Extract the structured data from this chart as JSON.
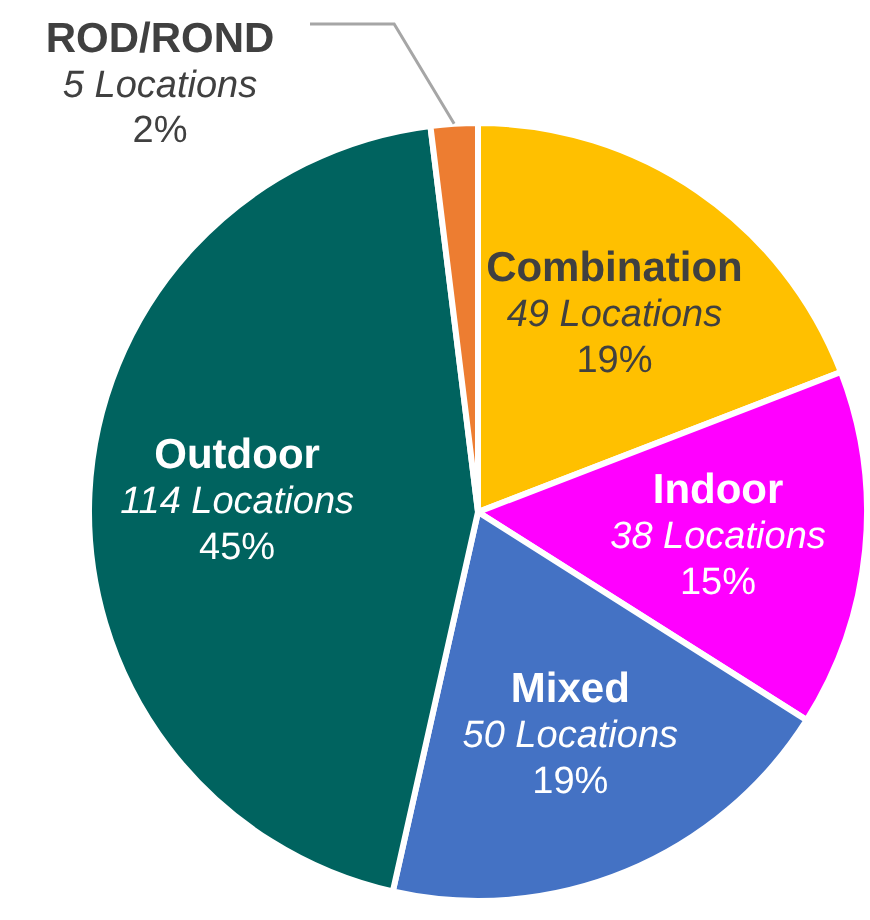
{
  "chart_data": {
    "type": "pie",
    "categories": [
      "Combination",
      "Indoor",
      "Mixed",
      "Outdoor",
      "ROD/ROND"
    ],
    "values": [
      49,
      38,
      50,
      114,
      5
    ],
    "colors": [
      "#ffc000",
      "#ff00ff",
      "#4472c4",
      "#00635f",
      "#ed7d31"
    ],
    "value_labels": [
      "49 Locations\n19%",
      "38 Locations\n15%",
      "50 Locations\n19%",
      "114 Locations\n45%",
      "5 Locations\n2%"
    ],
    "legend": false
  }
}
